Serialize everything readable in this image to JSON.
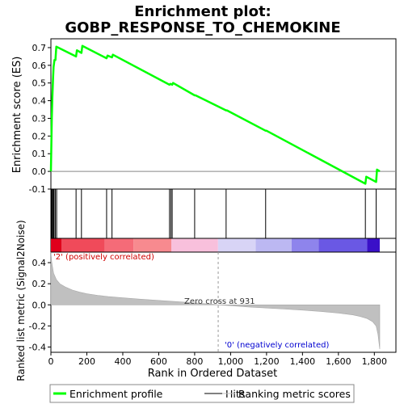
{
  "chart_data": {
    "type": "line",
    "title_line1": "Enrichment plot:",
    "title_line2": "GOBP_RESPONSE_TO_CHEMOKINE",
    "xlabel": "Rank in Ordered Dataset",
    "ylabel_top": "Enrichment score (ES)",
    "ylabel_bottom": "Ranked list metric (Signal2Noise)",
    "xlim": [
      0,
      1920
    ],
    "es_ylim": [
      -0.1,
      0.75
    ],
    "metric_ylim": [
      -0.45,
      0.5
    ],
    "x_ticks": [
      0,
      200,
      400,
      600,
      800,
      1000,
      1200,
      1400,
      1600,
      1800
    ],
    "x_tick_labels": [
      "0",
      "200",
      "400",
      "600",
      "800",
      "1,000",
      "1,200",
      "1,400",
      "1,600",
      "1,800"
    ],
    "es_ticks": [
      -0.1,
      0.0,
      0.1,
      0.2,
      0.3,
      0.4,
      0.5,
      0.6,
      0.7
    ],
    "es_tick_labels": [
      "-0.1",
      "0.0",
      "0.1",
      "0.2",
      "0.3",
      "0.4",
      "0.5",
      "0.6",
      "0.7"
    ],
    "metric_ticks": [
      -0.4,
      -0.2,
      0.0,
      0.2,
      0.4
    ],
    "metric_tick_labels": [
      "-0.4",
      "-0.2",
      "0.0",
      "0.2",
      "0.4"
    ],
    "series": [
      {
        "name": "Enrichment profile",
        "x": [
          0,
          5,
          8,
          12,
          15,
          20,
          25,
          30,
          140,
          145,
          170,
          175,
          310,
          315,
          340,
          345,
          660,
          665,
          675,
          680,
          800,
          805,
          975,
          980,
          1195,
          1200,
          1750,
          1755,
          1810,
          1815,
          1830
        ],
        "y": [
          0.0,
          0.3,
          0.42,
          0.53,
          0.59,
          0.63,
          0.63,
          0.705,
          0.65,
          0.685,
          0.67,
          0.71,
          0.64,
          0.655,
          0.645,
          0.66,
          0.49,
          0.495,
          0.49,
          0.5,
          0.43,
          0.43,
          0.345,
          0.345,
          0.23,
          0.23,
          -0.07,
          -0.03,
          -0.06,
          0.01,
          0.0
        ]
      }
    ],
    "hits": [
      3,
      7,
      12,
      15,
      18,
      25,
      32,
      140,
      170,
      310,
      340,
      660,
      668,
      675,
      800,
      975,
      1195,
      1750,
      1810
    ],
    "metric": {
      "x": [
        0,
        5,
        15,
        30,
        50,
        80,
        120,
        160,
        200,
        260,
        320,
        400,
        500,
        600,
        700,
        800,
        900,
        931,
        1000,
        1100,
        1200,
        1300,
        1400,
        1500,
        1600,
        1680,
        1720,
        1760,
        1790,
        1810,
        1820,
        1830
      ],
      "y": [
        0.5,
        0.4,
        0.3,
        0.24,
        0.2,
        0.17,
        0.14,
        0.12,
        0.105,
        0.09,
        0.078,
        0.066,
        0.053,
        0.042,
        0.03,
        0.018,
        0.006,
        0.0,
        -0.008,
        -0.02,
        -0.03,
        -0.04,
        -0.05,
        -0.062,
        -0.078,
        -0.095,
        -0.11,
        -0.13,
        -0.16,
        -0.2,
        -0.28,
        -0.42
      ]
    },
    "zero_cross": 931,
    "zero_cross_label": "Zero cross at 931",
    "pos_label": "'2' (positively correlated)",
    "neg_label": "'0' (negatively correlated)",
    "colorbar": [
      {
        "from": 0,
        "to": 60,
        "color": "#e0001b"
      },
      {
        "from": 60,
        "to": 300,
        "color": "#f04a5a"
      },
      {
        "from": 300,
        "to": 460,
        "color": "#f56b78"
      },
      {
        "from": 460,
        "to": 670,
        "color": "#f78a8f"
      },
      {
        "from": 670,
        "to": 930,
        "color": "#f8c0dc"
      },
      {
        "from": 930,
        "to": 1140,
        "color": "#d8d4f6"
      },
      {
        "from": 1140,
        "to": 1340,
        "color": "#bcb8f2"
      },
      {
        "from": 1340,
        "to": 1490,
        "color": "#8e84ec"
      },
      {
        "from": 1490,
        "to": 1760,
        "color": "#6a58e4"
      },
      {
        "from": 1760,
        "to": 1830,
        "color": "#3a10c8"
      }
    ],
    "colors": {
      "profile": "#00ff00",
      "hits": "#000000",
      "metric_fill": "#c0c0c0",
      "pos_label": "#d00000",
      "neg_label": "#0000d0"
    },
    "legend": {
      "placement": "bottom",
      "items": [
        "Enrichment profile",
        "Hits",
        "Ranking metric scores"
      ]
    }
  }
}
